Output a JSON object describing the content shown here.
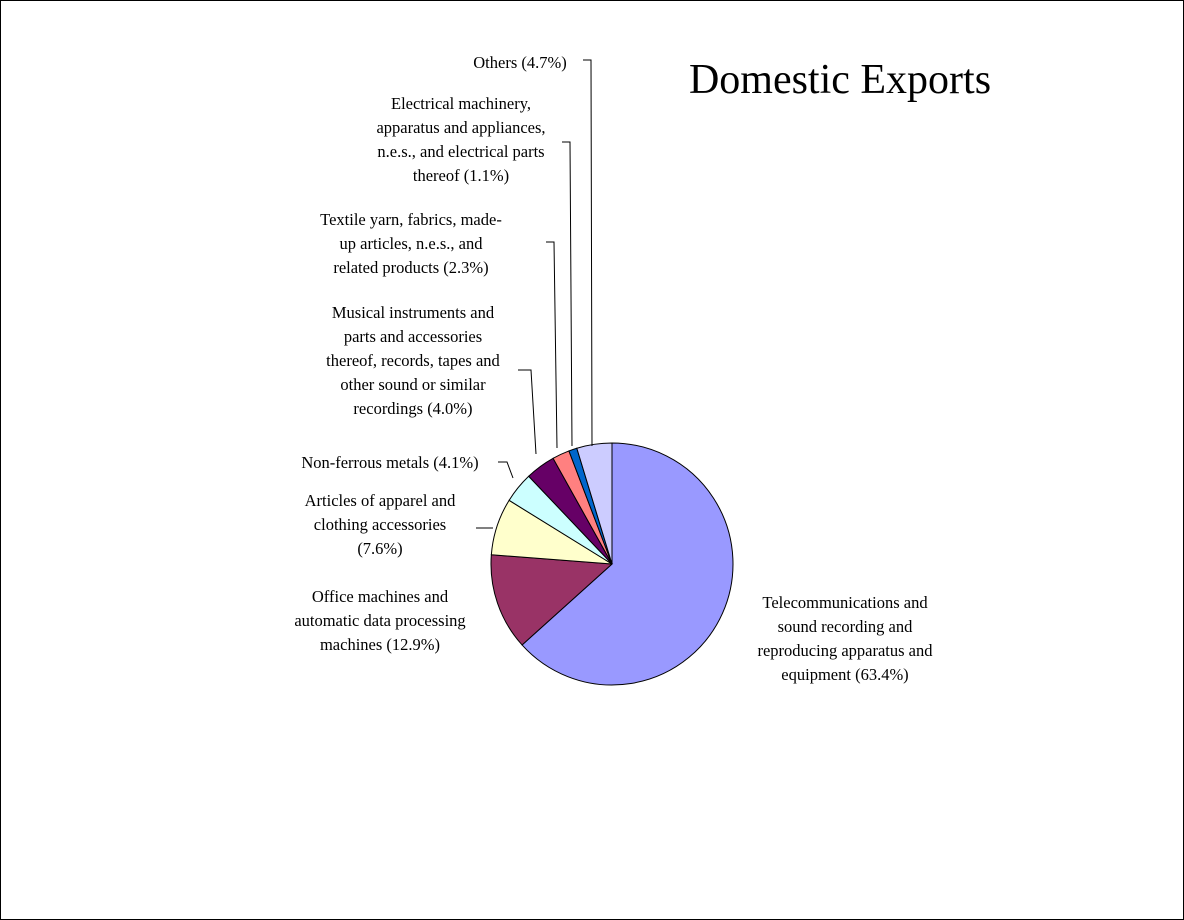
{
  "chart_data": {
    "type": "pie",
    "title": "Domestic Exports",
    "start_angle": "12 o'clock",
    "direction": "clockwise",
    "slices": [
      {
        "label": "Telecommunications and sound recording and reproducing apparatus and equipment (63.4%)",
        "lines": [
          "Telecommunications and",
          "sound recording and",
          "reproducing apparatus and",
          "equipment (63.4%)"
        ],
        "value": 63.4,
        "color": "#9999FF"
      },
      {
        "label": "Office machines and automatic data processing machines (12.9%)",
        "lines": [
          "Office machines and",
          "automatic data processing",
          "machines (12.9%)"
        ],
        "value": 12.9,
        "color": "#993366"
      },
      {
        "label": "Articles of apparel and clothing accessories (7.6%)",
        "lines": [
          "Articles of apparel and",
          "clothing accessories",
          "(7.6%)"
        ],
        "value": 7.6,
        "color": "#FFFFCC"
      },
      {
        "label": "Non-ferrous metals (4.1%)",
        "lines": [
          "Non-ferrous metals (4.1%)"
        ],
        "value": 4.1,
        "color": "#CCFFFF"
      },
      {
        "label": "Musical instruments and parts and accessories thereof, records, tapes and other sound or similar recordings (4.0%)",
        "lines": [
          "Musical instruments and",
          "parts and accessories",
          "thereof, records, tapes and",
          "other sound or similar",
          "recordings (4.0%)"
        ],
        "value": 4.0,
        "color": "#660066"
      },
      {
        "label": "Textile yarn, fabrics, made-up articles, n.e.s., and related products (2.3%)",
        "lines": [
          "Textile yarn, fabrics, made-",
          "up articles, n.e.s., and",
          "related products (2.3%)"
        ],
        "value": 2.3,
        "color": "#FF8080"
      },
      {
        "label": "Electrical machinery, apparatus and appliances, n.e.s., and electrical parts thereof (1.1%)",
        "lines": [
          "Electrical machinery,",
          "apparatus and appliances,",
          "n.e.s., and electrical parts",
          "thereof (1.1%)"
        ],
        "value": 1.1,
        "color": "#0066CC"
      },
      {
        "label": "Others (4.7%)",
        "lines": [
          "Others (4.7%)"
        ],
        "value": 4.7,
        "color": "#CCCCFF"
      }
    ]
  }
}
